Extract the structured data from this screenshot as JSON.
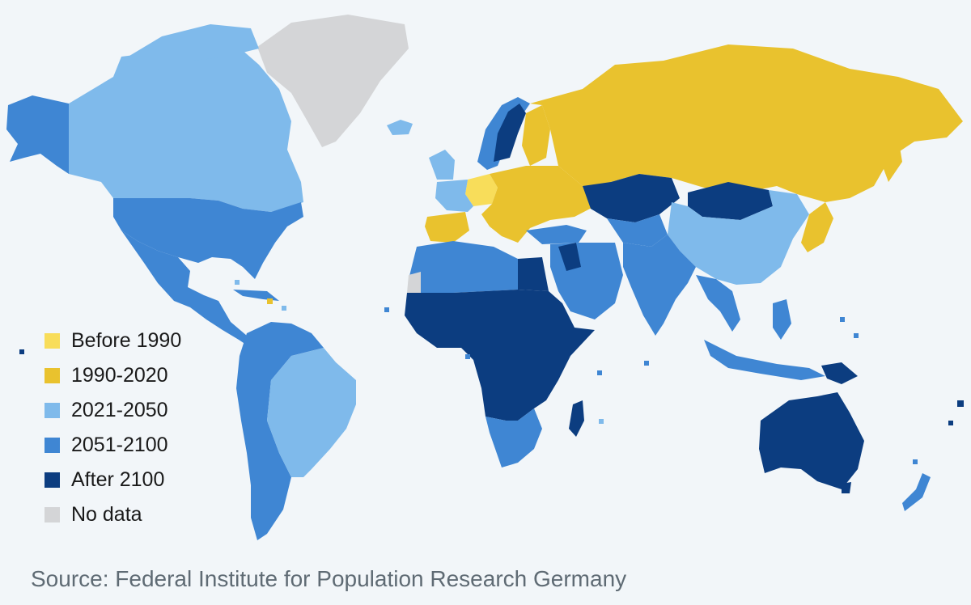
{
  "legend": {
    "items": [
      {
        "label": "Before 1990",
        "color": "#f8dd5a"
      },
      {
        "label": "1990-2020",
        "color": "#e9c22e"
      },
      {
        "label": "2021-2050",
        "color": "#7fbaeb"
      },
      {
        "label": "2051-2100",
        "color": "#3f86d3"
      },
      {
        "label": "After 2100",
        "color": "#0c3d80"
      },
      {
        "label": "No data",
        "color": "#d4d5d7"
      }
    ]
  },
  "source": "Source: Federal Institute for Population Research Germany"
}
